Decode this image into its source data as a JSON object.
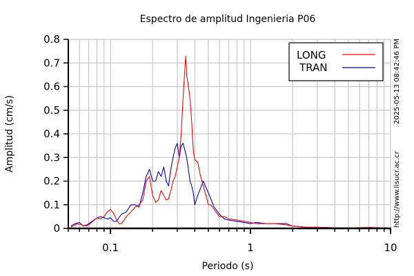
{
  "chart_data": {
    "type": "line",
    "title": "Espectro de amplitud Ingenieria P06",
    "xlabel": "Periodo (s)",
    "ylabel": "Amplitud (cm/s)",
    "xscale": "log",
    "xlim": [
      0.05,
      10
    ],
    "ylim": [
      0,
      0.8
    ],
    "xticks": [
      "0.1",
      "1",
      "10"
    ],
    "yticks": [
      "0",
      "0.1",
      "0.2",
      "0.3",
      "0.4",
      "0.5",
      "0.6",
      "0.7",
      "0.8"
    ],
    "grid": true,
    "legend_position": "upper right",
    "series": [
      {
        "name": "LONG",
        "color": "#ff0000",
        "x": [
          0.052,
          0.058,
          0.062,
          0.066,
          0.07,
          0.075,
          0.08,
          0.085,
          0.09,
          0.095,
          0.1,
          0.105,
          0.11,
          0.115,
          0.12,
          0.13,
          0.14,
          0.15,
          0.16,
          0.17,
          0.18,
          0.19,
          0.2,
          0.21,
          0.22,
          0.23,
          0.24,
          0.25,
          0.26,
          0.27,
          0.28,
          0.29,
          0.3,
          0.31,
          0.32,
          0.33,
          0.34,
          0.345,
          0.35,
          0.36,
          0.37,
          0.38,
          0.39,
          0.4,
          0.42,
          0.44,
          0.46,
          0.48,
          0.5,
          0.52,
          0.55,
          0.6,
          0.65,
          0.7,
          0.8,
          0.9,
          1.0,
          1.1,
          1.3,
          1.5,
          1.8,
          2.0,
          2.5,
          3.0,
          4.0,
          5.0,
          7.0,
          9.5
        ],
        "values": [
          0.005,
          0.02,
          0.015,
          0.01,
          0.015,
          0.03,
          0.045,
          0.04,
          0.05,
          0.07,
          0.08,
          0.065,
          0.04,
          0.02,
          0.02,
          0.05,
          0.07,
          0.09,
          0.1,
          0.12,
          0.2,
          0.22,
          0.14,
          0.11,
          0.12,
          0.16,
          0.14,
          0.12,
          0.125,
          0.16,
          0.2,
          0.22,
          0.26,
          0.3,
          0.4,
          0.55,
          0.68,
          0.73,
          0.65,
          0.6,
          0.55,
          0.45,
          0.33,
          0.29,
          0.28,
          0.22,
          0.18,
          0.14,
          0.1,
          0.1,
          0.08,
          0.05,
          0.05,
          0.04,
          0.035,
          0.03,
          0.025,
          0.02,
          0.02,
          0.02,
          0.015,
          0.01,
          0.005,
          0.005,
          0.003,
          0.002,
          0.004,
          0.002
        ]
      },
      {
        "name": "TRAN",
        "color": "#0000cc",
        "x": [
          0.052,
          0.056,
          0.06,
          0.064,
          0.068,
          0.072,
          0.078,
          0.085,
          0.09,
          0.095,
          0.1,
          0.105,
          0.11,
          0.12,
          0.13,
          0.14,
          0.15,
          0.16,
          0.17,
          0.18,
          0.19,
          0.2,
          0.21,
          0.22,
          0.23,
          0.24,
          0.25,
          0.26,
          0.27,
          0.28,
          0.29,
          0.3,
          0.31,
          0.32,
          0.33,
          0.34,
          0.35,
          0.36,
          0.37,
          0.38,
          0.39,
          0.4,
          0.42,
          0.44,
          0.46,
          0.5,
          0.55,
          0.6,
          0.65,
          0.7,
          0.8,
          0.9,
          1.0,
          1.1,
          1.3,
          1.5,
          1.8,
          2.0,
          2.5,
          3.0,
          4.0,
          5.0,
          7.0,
          9.5
        ],
        "values": [
          0.01,
          0.02,
          0.025,
          0.01,
          0.015,
          0.025,
          0.04,
          0.05,
          0.045,
          0.04,
          0.045,
          0.03,
          0.03,
          0.06,
          0.07,
          0.1,
          0.1,
          0.09,
          0.15,
          0.22,
          0.25,
          0.2,
          0.2,
          0.24,
          0.22,
          0.26,
          0.2,
          0.18,
          0.25,
          0.3,
          0.34,
          0.36,
          0.3,
          0.35,
          0.36,
          0.33,
          0.3,
          0.25,
          0.2,
          0.18,
          0.15,
          0.1,
          0.14,
          0.17,
          0.2,
          0.15,
          0.09,
          0.06,
          0.04,
          0.035,
          0.03,
          0.025,
          0.02,
          0.025,
          0.02,
          0.02,
          0.02,
          0.01,
          0.005,
          0.004,
          0.003,
          0.002,
          0.002,
          0.002
        ]
      }
    ]
  },
  "side_labels": {
    "timestamp": "2025-05-13 08:42:46 PM",
    "url": "http://www.lisucr.ac.cr"
  }
}
